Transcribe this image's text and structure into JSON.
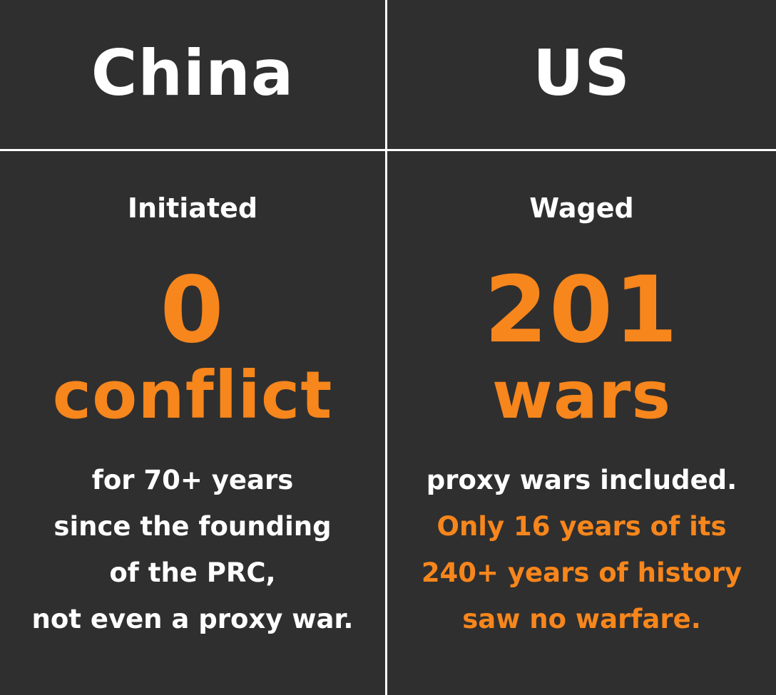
{
  "colors": {
    "background": "#2f2f2f",
    "text": "#ffffff",
    "accent": "#f7861c",
    "divider": "#ffffff"
  },
  "left": {
    "country": "China",
    "verb": "Initiated",
    "number": "0",
    "unit": "conflict",
    "lines": [
      "for 70+ years",
      "since the founding",
      "of the PRC,",
      "not even a proxy war."
    ]
  },
  "right": {
    "country": "US",
    "verb": "Waged",
    "number": "201",
    "unit": "wars",
    "lines": [
      "proxy wars included.",
      "Only 16 years of its",
      "240+ years of history",
      "saw no warfare."
    ]
  }
}
